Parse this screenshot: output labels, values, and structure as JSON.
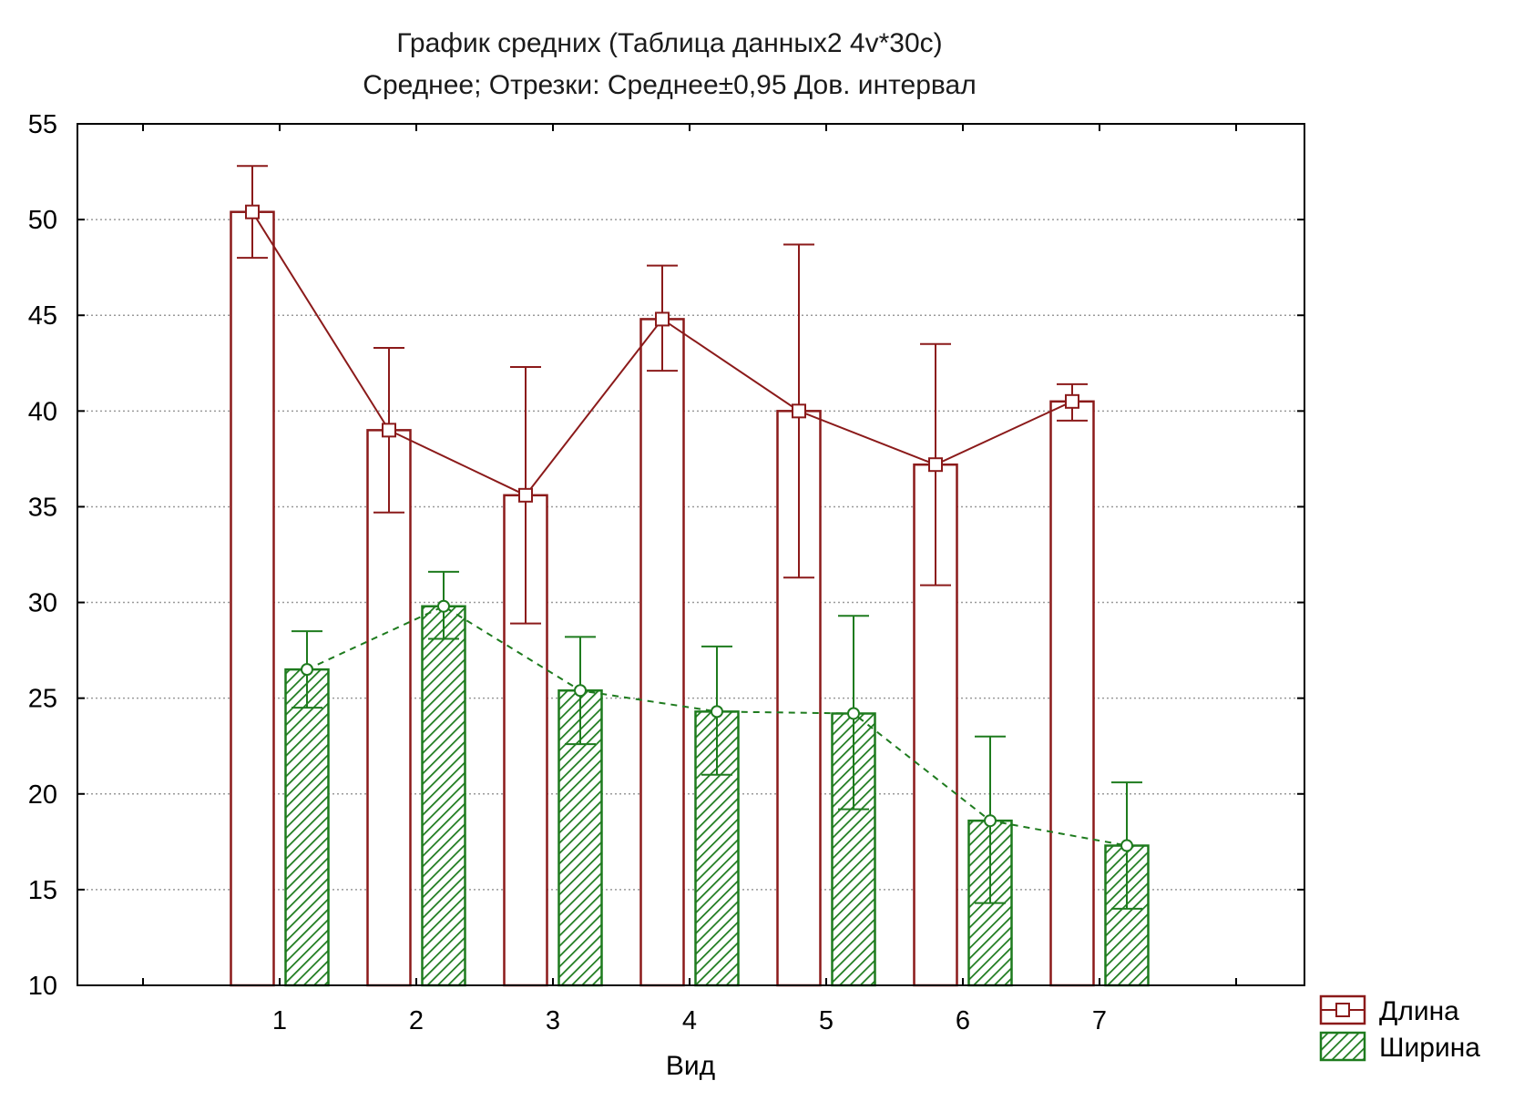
{
  "chart_data": {
    "type": "bar",
    "title": "График средних (Таблица данных2 4v*30c)",
    "subtitle": "Среднее; Отрезки: Среднее±0,95 Дов. интервал",
    "xlabel": "Вид",
    "ylabel": "",
    "categories": [
      "1",
      "2",
      "3",
      "4",
      "5",
      "6",
      "7"
    ],
    "ylim": [
      10,
      55
    ],
    "yticks": [
      "10",
      "15",
      "20",
      "25",
      "30",
      "35",
      "40",
      "45",
      "50",
      "55"
    ],
    "grid": true,
    "legend_position": "bottom-right",
    "series": [
      {
        "name": "Длина",
        "color": "#8b1a1a",
        "fill": "none",
        "line": "solid",
        "marker": "square",
        "values": [
          50.4,
          39.0,
          35.6,
          44.8,
          40.0,
          37.2,
          40.5
        ],
        "ci_low": [
          48.0,
          34.7,
          28.9,
          42.1,
          31.3,
          30.9,
          39.5
        ],
        "ci_high": [
          52.8,
          43.3,
          42.3,
          47.6,
          48.7,
          43.5,
          41.4
        ]
      },
      {
        "name": "Ширина",
        "color": "#1e7b1e",
        "fill": "hatched",
        "line": "dashed",
        "marker": "circle",
        "values": [
          26.5,
          29.8,
          25.4,
          24.3,
          24.2,
          18.6,
          17.3
        ],
        "ci_low": [
          24.5,
          28.1,
          22.6,
          21.0,
          19.2,
          14.3,
          14.0
        ],
        "ci_high": [
          28.5,
          31.6,
          28.2,
          27.7,
          29.3,
          23.0,
          20.6
        ]
      }
    ]
  }
}
